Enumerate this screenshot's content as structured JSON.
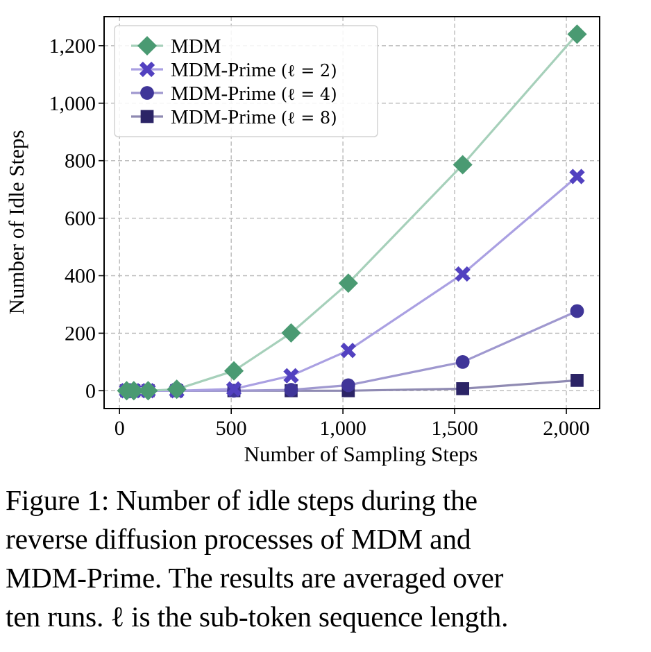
{
  "chart_data": {
    "type": "line",
    "title": "",
    "xlabel": "Number of Sampling Steps",
    "ylabel": "Number of Idle Steps",
    "x": [
      32,
      64,
      128,
      256,
      512,
      768,
      1024,
      1536,
      2048
    ],
    "xlim": [
      -69,
      2149
    ],
    "ylim": [
      -62,
      1301
    ],
    "xticks": [
      0,
      500,
      1000,
      1500,
      2000
    ],
    "xtick_labels": [
      "0",
      "500",
      "1,000",
      "1,500",
      "2,000"
    ],
    "yticks": [
      0,
      200,
      400,
      600,
      800,
      1000,
      1200
    ],
    "ytick_labels": [
      "0",
      "200",
      "400",
      "600",
      "800",
      "1,000",
      "1,200"
    ],
    "grid": true,
    "legend_position": "top-left",
    "series": [
      {
        "name": "MDM",
        "marker": "diamond",
        "marker_color": "#4a9a72",
        "line_color": "#a6d0ba",
        "values": [
          0,
          0,
          0,
          5,
          69,
          201,
          374,
          786,
          1240
        ]
      },
      {
        "name": "MDM-Prime (ℓ = 2)",
        "marker": "x-cross",
        "marker_color": "#5241c0",
        "line_color": "#aaa0e2",
        "values": [
          0,
          0,
          0,
          0,
          6,
          52,
          140,
          406,
          745
        ]
      },
      {
        "name": "MDM-Prime (ℓ = 4)",
        "marker": "circle",
        "marker_color": "#3f3598",
        "line_color": "#9f98cf",
        "values": [
          0,
          0,
          0,
          0,
          0,
          3,
          19,
          100,
          277
        ]
      },
      {
        "name": "MDM-Prime (ℓ = 8)",
        "marker": "square",
        "marker_color": "#2b2466",
        "line_color": "#8f8ab2",
        "values": [
          0,
          0,
          0,
          0,
          0,
          0,
          0,
          7,
          36
        ]
      }
    ]
  },
  "legend": {
    "entries": [
      {
        "prefix": "MDM",
        "math": ""
      },
      {
        "prefix": "MDM-Prime ",
        "math": "(ℓ = 2)"
      },
      {
        "prefix": "MDM-Prime ",
        "math": "(ℓ = 4)"
      },
      {
        "prefix": "MDM-Prime ",
        "math": "(ℓ = 8)"
      }
    ]
  },
  "caption": {
    "lines": [
      "Figure 1: Number of idle steps during the",
      "reverse diffusion processes of MDM and",
      "MDM-Prime. The results are averaged over",
      "ten runs. ℓ is the sub-token sequence length."
    ]
  }
}
